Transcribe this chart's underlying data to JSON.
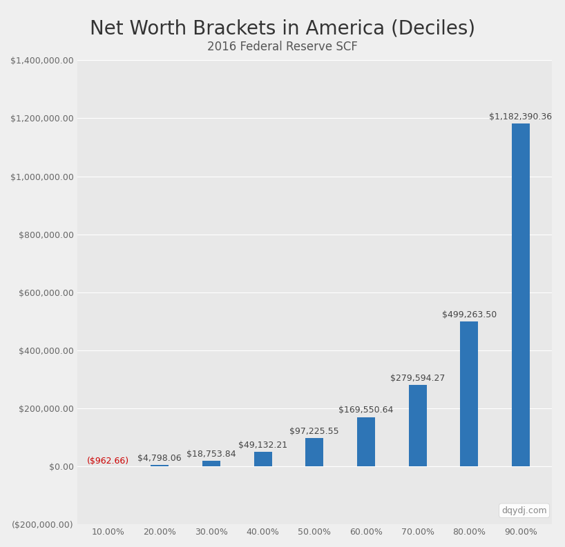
{
  "title": "Net Worth Brackets in America (Deciles)",
  "subtitle": "2016 Federal Reserve SCF",
  "categories": [
    "10.00%",
    "20.00%",
    "30.00%",
    "40.00%",
    "50.00%",
    "60.00%",
    "70.00%",
    "80.00%",
    "90.00%"
  ],
  "values": [
    -962.66,
    4798.06,
    18753.84,
    49132.21,
    97225.55,
    169550.64,
    279594.27,
    499263.5,
    1182390.36
  ],
  "labels": [
    "($962.66)",
    "$4,798.06",
    "$18,753.84",
    "$49,132.21",
    "$97,225.55",
    "$169,550.64",
    "$279,594.27",
    "$499,263.50",
    "$1,182,390.36"
  ],
  "bar_color": "#2E75B6",
  "negative_label_color": "#CC0000",
  "background_color": "#EFEFEF",
  "plot_bg_color": "#E8E8E8",
  "ylim_min": -200000,
  "ylim_max": 1400000,
  "yticks": [
    -200000,
    0,
    200000,
    400000,
    600000,
    800000,
    1000000,
    1200000,
    1400000
  ],
  "watermark": "dqydj.com",
  "title_fontsize": 20,
  "subtitle_fontsize": 12,
  "tick_fontsize": 9,
  "label_fontsize": 9
}
